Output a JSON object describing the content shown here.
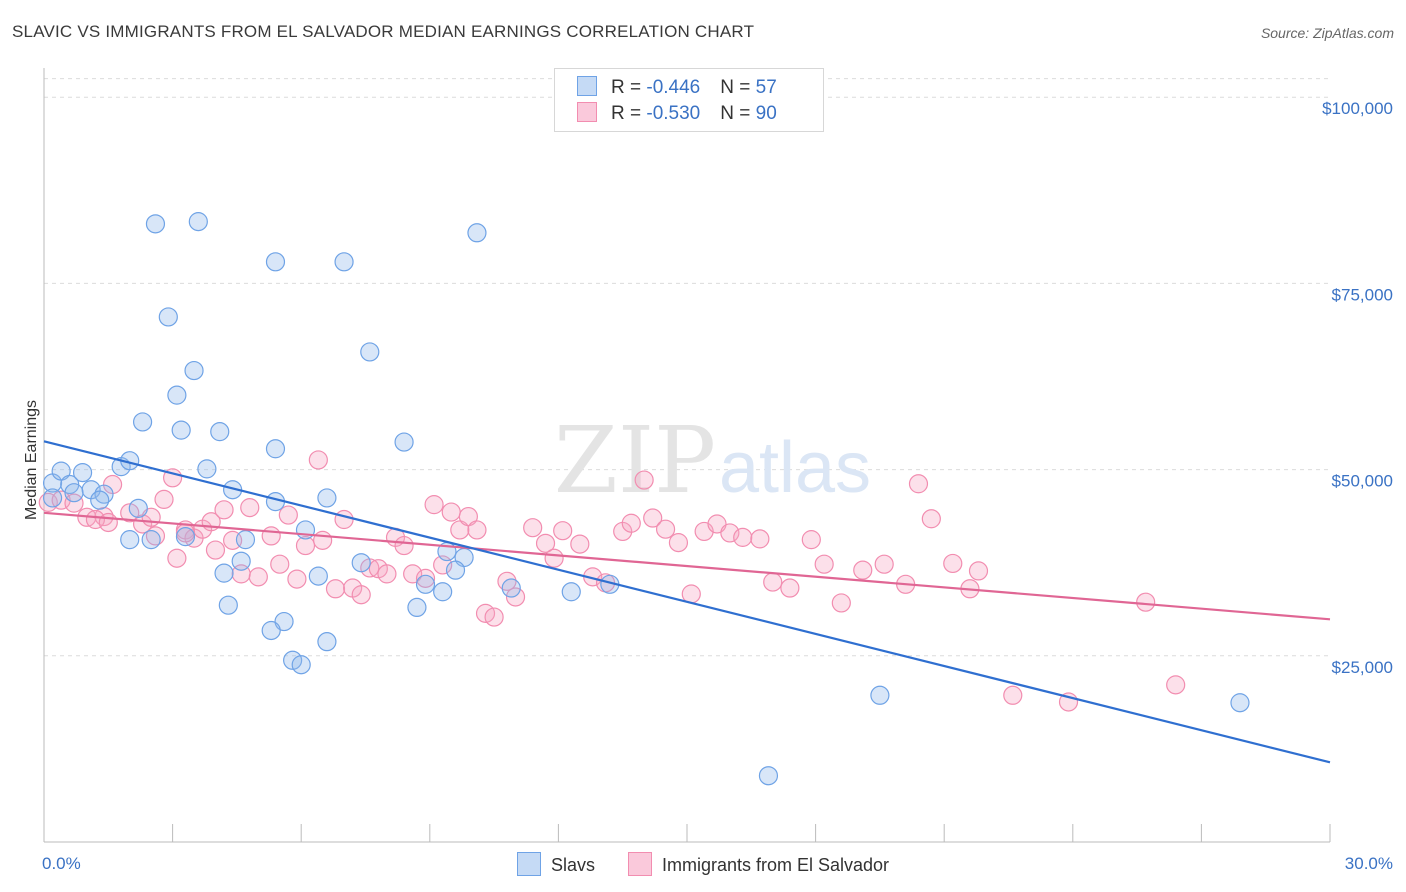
{
  "header": {
    "title": "SLAVIC VS IMMIGRANTS FROM EL SALVADOR MEDIAN EARNINGS CORRELATION CHART",
    "source": "Source: ZipAtlas.com"
  },
  "watermark": {
    "zip": "ZIP",
    "atlas": "atlas"
  },
  "legend": {
    "rows": [
      {
        "r_label": "R = ",
        "r_value": "-0.446",
        "n_label": "N = ",
        "n_value": "57"
      },
      {
        "r_label": "R = ",
        "r_value": "-0.530",
        "n_label": "N = ",
        "n_value": "90"
      }
    ]
  },
  "chart_data": {
    "type": "scatter",
    "title": "SLAVIC VS IMMIGRANTS FROM EL SALVADOR MEDIAN EARNINGS CORRELATION CHART",
    "xlabel": "",
    "ylabel": "Median Earnings",
    "xlim": [
      0,
      30
    ],
    "ylim": [
      0,
      105000
    ],
    "x_tick_labels": [
      "0.0%",
      "30.0%"
    ],
    "y_ticks": [
      25000,
      50000,
      75000,
      100000
    ],
    "y_tick_labels": [
      "$25,000",
      "$50,000",
      "$75,000",
      "$100,000"
    ],
    "grid": true,
    "legend_position": "top-center",
    "colors": {
      "slavs": "#6fa3e6",
      "salvador": "#f28db0",
      "slavs_line": "#2f6fd0",
      "salvador_line": "#e06694"
    },
    "series": [
      {
        "name": "Slavs",
        "r": -0.446,
        "n": 57,
        "trend": {
          "x": [
            0,
            30
          ],
          "y": [
            53800,
            10700
          ]
        },
        "points": [
          [
            0.2,
            48200
          ],
          [
            0.4,
            49800
          ],
          [
            0.6,
            48000
          ],
          [
            0.9,
            49600
          ],
          [
            1.1,
            47300
          ],
          [
            1.4,
            46700
          ],
          [
            0.7,
            46900
          ],
          [
            1.3,
            45900
          ],
          [
            1.8,
            50400
          ],
          [
            2.0,
            51200
          ],
          [
            2.2,
            44800
          ],
          [
            2.0,
            40600
          ],
          [
            2.5,
            40600
          ],
          [
            2.6,
            83000
          ],
          [
            3.6,
            83300
          ],
          [
            2.9,
            70500
          ],
          [
            3.5,
            63300
          ],
          [
            3.1,
            60000
          ],
          [
            3.2,
            55300
          ],
          [
            2.3,
            56400
          ],
          [
            3.8,
            50100
          ],
          [
            4.1,
            55100
          ],
          [
            4.4,
            47300
          ],
          [
            4.6,
            37700
          ],
          [
            4.2,
            36100
          ],
          [
            4.3,
            31800
          ],
          [
            4.7,
            40600
          ],
          [
            5.4,
            52800
          ],
          [
            5.4,
            45700
          ],
          [
            5.6,
            29600
          ],
          [
            5.8,
            24400
          ],
          [
            6.0,
            23800
          ],
          [
            5.3,
            28400
          ],
          [
            6.1,
            41900
          ],
          [
            6.4,
            35700
          ],
          [
            6.6,
            26900
          ],
          [
            6.6,
            46200
          ],
          [
            5.4,
            77900
          ],
          [
            7.0,
            77900
          ],
          [
            7.6,
            65800
          ],
          [
            7.4,
            37500
          ],
          [
            8.4,
            53700
          ],
          [
            8.7,
            31500
          ],
          [
            10.1,
            81800
          ],
          [
            9.4,
            39000
          ],
          [
            9.8,
            38200
          ],
          [
            9.6,
            36500
          ],
          [
            9.3,
            33600
          ],
          [
            8.9,
            34600
          ],
          [
            10.9,
            34100
          ],
          [
            12.3,
            33600
          ],
          [
            13.2,
            34600
          ],
          [
            19.5,
            19700
          ],
          [
            16.9,
            8900
          ],
          [
            27.9,
            18700
          ],
          [
            0.2,
            46200
          ],
          [
            3.3,
            41000
          ]
        ]
      },
      {
        "name": "Immigrants from El Salvador",
        "r": -0.53,
        "n": 90,
        "trend": {
          "x": [
            0,
            30
          ],
          "y": [
            44200,
            29900
          ]
        },
        "points": [
          [
            0.1,
            45600
          ],
          [
            0.4,
            45900
          ],
          [
            0.7,
            45500
          ],
          [
            1.0,
            43600
          ],
          [
            1.4,
            43700
          ],
          [
            1.2,
            43300
          ],
          [
            1.6,
            48000
          ],
          [
            1.5,
            42900
          ],
          [
            2.0,
            44200
          ],
          [
            2.3,
            42700
          ],
          [
            2.5,
            43600
          ],
          [
            2.6,
            41100
          ],
          [
            2.8,
            46000
          ],
          [
            3.0,
            48900
          ],
          [
            3.1,
            38100
          ],
          [
            3.3,
            41900
          ],
          [
            3.5,
            40800
          ],
          [
            3.7,
            42000
          ],
          [
            3.9,
            43000
          ],
          [
            4.0,
            39200
          ],
          [
            4.2,
            44600
          ],
          [
            4.4,
            40500
          ],
          [
            4.6,
            36000
          ],
          [
            4.8,
            44900
          ],
          [
            5.0,
            35600
          ],
          [
            5.3,
            41100
          ],
          [
            5.5,
            37300
          ],
          [
            5.7,
            43900
          ],
          [
            5.9,
            35300
          ],
          [
            6.1,
            39800
          ],
          [
            6.4,
            51300
          ],
          [
            6.5,
            40500
          ],
          [
            6.8,
            34000
          ],
          [
            7.0,
            43300
          ],
          [
            7.2,
            34100
          ],
          [
            7.4,
            33200
          ],
          [
            7.6,
            36800
          ],
          [
            7.8,
            36700
          ],
          [
            8.0,
            36000
          ],
          [
            8.2,
            40900
          ],
          [
            8.4,
            39800
          ],
          [
            8.6,
            36000
          ],
          [
            8.9,
            35400
          ],
          [
            9.1,
            45300
          ],
          [
            9.3,
            37200
          ],
          [
            9.5,
            44300
          ],
          [
            9.7,
            41900
          ],
          [
            9.9,
            43700
          ],
          [
            10.1,
            41900
          ],
          [
            10.3,
            30700
          ],
          [
            10.5,
            30200
          ],
          [
            10.8,
            35000
          ],
          [
            11.0,
            32900
          ],
          [
            11.4,
            42200
          ],
          [
            11.7,
            40100
          ],
          [
            11.9,
            38100
          ],
          [
            12.1,
            41800
          ],
          [
            12.5,
            40000
          ],
          [
            12.8,
            35600
          ],
          [
            13.1,
            34800
          ],
          [
            13.5,
            41700
          ],
          [
            13.7,
            42800
          ],
          [
            14.0,
            48600
          ],
          [
            14.2,
            43500
          ],
          [
            14.5,
            42000
          ],
          [
            14.8,
            40200
          ],
          [
            15.1,
            33300
          ],
          [
            15.4,
            41700
          ],
          [
            15.7,
            42700
          ],
          [
            16.0,
            41500
          ],
          [
            16.3,
            40900
          ],
          [
            16.7,
            40700
          ],
          [
            17.0,
            34900
          ],
          [
            17.4,
            34100
          ],
          [
            17.9,
            40600
          ],
          [
            18.2,
            37300
          ],
          [
            18.6,
            32100
          ],
          [
            19.1,
            36500
          ],
          [
            19.6,
            37300
          ],
          [
            20.1,
            34600
          ],
          [
            20.4,
            48100
          ],
          [
            20.7,
            43400
          ],
          [
            21.2,
            37400
          ],
          [
            21.6,
            34000
          ],
          [
            21.8,
            36400
          ],
          [
            22.6,
            19700
          ],
          [
            23.9,
            18800
          ],
          [
            25.7,
            32200
          ],
          [
            26.4,
            21100
          ],
          [
            3.3,
            41500
          ]
        ]
      }
    ]
  },
  "bottom_legend": {
    "slavs_label": "Slavs",
    "salvador_label": "Immigrants from El Salvador"
  }
}
